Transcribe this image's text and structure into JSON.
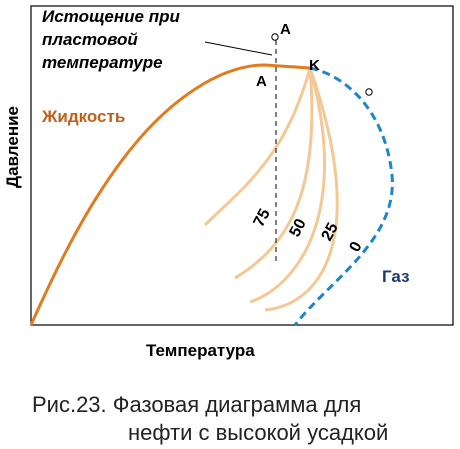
{
  "diagram": {
    "y_axis_label": "Давление",
    "x_axis_label": "Температура",
    "annotation_lines": [
      "Истощение при",
      "пластовой",
      "температуре"
    ],
    "point_top_label": "A",
    "point_bottom_label": "A",
    "critical_point_label": "K",
    "liquid_label": "Жидкость",
    "gas_label": "Газ",
    "quality_labels": [
      "75",
      "50",
      "25",
      "0"
    ]
  },
  "caption": {
    "line1": "Рис.23. Фазовая диаграмма для",
    "line2": "нефти с высокой усадкой"
  },
  "colors": {
    "bubble_point_curve": "#e07b1f",
    "dew_point_curve": "#1b86c9",
    "quality_lines": "#f3c895",
    "gas_label": "#1f3b73",
    "liquid_label": "#c0601a",
    "axes": "#000000"
  }
}
